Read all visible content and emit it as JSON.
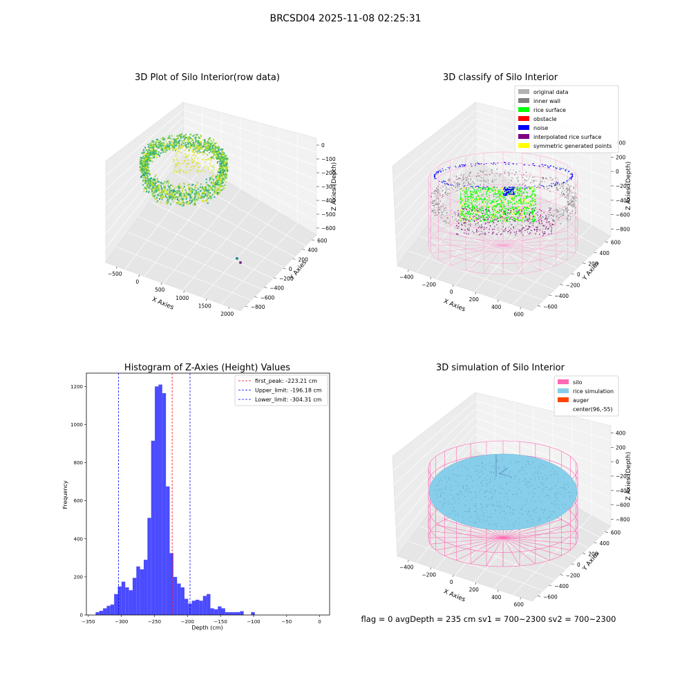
{
  "figure": {
    "suptitle": "BRCSD04 2025-11-08 02:25:31",
    "footer": "flag = 0     avgDepth = 235 cm  sv1 = 700~2300  sv2 = 700~2300"
  },
  "colors": {
    "raw_points": "#5ec962",
    "original": "#b3b3b3",
    "inner_wall": "#808080",
    "rice_surface": "#00ff00",
    "obstacle": "#ff0000",
    "noise": "#0000ff",
    "interpolated": "#800080",
    "symmetric": "#ffff00",
    "silo": "#ff69b4",
    "rice_sim": "#87ceeb",
    "auger": "#ff4500",
    "hist_bar": "#4b4bff",
    "first_peak": "#ff0000",
    "limits": "#0000ff",
    "pane": "#f2f2f2"
  },
  "chart_data": [
    {
      "type": "scatter",
      "title": "3D Plot of Silo Interior(row data)",
      "xlabel": "X Axies",
      "ylabel": "Y Axies",
      "zlabel": "Z Axies (Depth)",
      "x_ticks": [
        "−500",
        "0",
        "500",
        "1000",
        "1500",
        "2000"
      ],
      "y_ticks": [
        "600",
        "400",
        "200",
        "0",
        "−200",
        "−400",
        "−600",
        "−800"
      ],
      "z_ticks": [
        "0",
        "−100",
        "−200",
        "−300",
        "−400",
        "−500",
        "−600"
      ]
    },
    {
      "type": "scatter",
      "title": "3D classify of Silo Interior",
      "xlabel": "X Axies",
      "ylabel": "Y Axies",
      "zlabel": "Z Axies (Depth)",
      "x_ticks": [
        "−400",
        "−200",
        "0",
        "200",
        "400",
        "600"
      ],
      "y_ticks": [
        "600",
        "400",
        "200",
        "0",
        "−200",
        "−400",
        "−600"
      ],
      "z_ticks": [
        "400",
        "200",
        "0",
        "−200",
        "−400",
        "−600",
        "−800"
      ],
      "legend": [
        "original data",
        "inner wall",
        "rice surface",
        "obstacle",
        "noise",
        "interpolated rice surface",
        "symmetric generated points"
      ],
      "legend_position": "top-right"
    },
    {
      "type": "bar",
      "title": "Histogram of Z-Axies (Height) Values",
      "xlabel": "Depth (cm)",
      "ylabel": "Frequency",
      "xlim": [
        -353,
        15
      ],
      "ylim": [
        0,
        1270
      ],
      "x_ticks": [
        -350,
        -300,
        -250,
        -200,
        -150,
        -100,
        -50,
        0
      ],
      "y_ticks": [
        0,
        200,
        400,
        600,
        800,
        1000,
        1200
      ],
      "bin_width": 5.6,
      "bin_start": -339,
      "values": [
        15,
        22,
        35,
        48,
        55,
        110,
        150,
        175,
        145,
        130,
        195,
        255,
        240,
        290,
        510,
        915,
        1200,
        1210,
        1165,
        675,
        325,
        200,
        165,
        145,
        85,
        60,
        75,
        80,
        75,
        100,
        110,
        35,
        30,
        45,
        35,
        15,
        15,
        15,
        15,
        20,
        0,
        0,
        15
      ],
      "lines": [
        {
          "label": "first_peak: -223.21 cm",
          "x": -223.21,
          "color": "red"
        },
        {
          "label": "Upper_limit: -196.18 cm",
          "x": -196.18,
          "color": "blue"
        },
        {
          "label": "Lower_limit: -304.31 cm",
          "x": -304.31,
          "color": "blue"
        }
      ],
      "legend_position": "top-right"
    },
    {
      "type": "scatter",
      "title": "3D simulation of Silo Interior",
      "xlabel": "X Axies",
      "ylabel": "Y Axies",
      "zlabel": "Z Axies (Depth)",
      "x_ticks": [
        "−400",
        "−200",
        "0",
        "200",
        "400",
        "600"
      ],
      "y_ticks": [
        "600",
        "400",
        "200",
        "0",
        "−200",
        "−400",
        "−600"
      ],
      "z_ticks": [
        "400",
        "200",
        "0",
        "−200",
        "−400",
        "−600",
        "−800"
      ],
      "legend": [
        "silo",
        "rice simulation",
        "auger",
        "center(96,-55)"
      ],
      "legend_position": "top-right"
    }
  ]
}
